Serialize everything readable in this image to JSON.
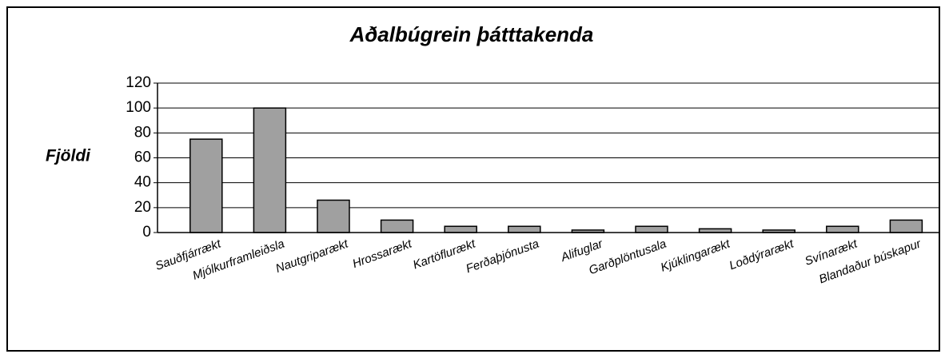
{
  "chart_data": {
    "type": "bar",
    "title": "Aðalbúgrein þátttakenda",
    "y_label": "Fjöldi",
    "categories": [
      "Sauðfjárrækt",
      "Mjólkurframleiðsla",
      "Nautgriparækt",
      "Hrossarækt",
      "Kartöflurækt",
      "Ferðaþjónusta",
      "Alifuglar",
      "Garðplöntusala",
      "Kjúklingarækt",
      "Loðdýrarækt",
      "Svínarækt",
      "Blandaður búskapur"
    ],
    "values": [
      75,
      100,
      26,
      10,
      5,
      5,
      2,
      5,
      3,
      2,
      5,
      10
    ],
    "color": "#a0a0a0",
    "ylim": [
      0,
      120
    ],
    "yticks": [
      0,
      20,
      40,
      60,
      80,
      100,
      120
    ],
    "grid": true
  }
}
